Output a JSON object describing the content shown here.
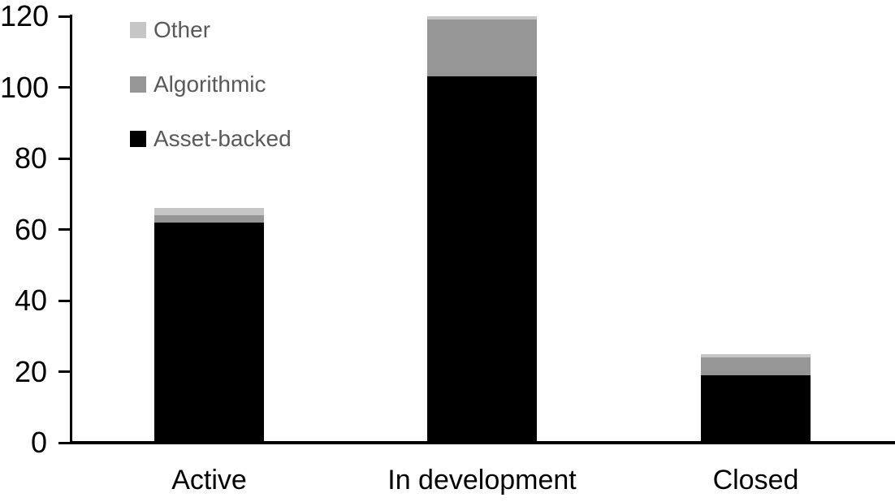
{
  "chart_data": {
    "type": "bar",
    "stacked": true,
    "title": "",
    "xlabel": "",
    "ylabel": "",
    "categories": [
      "Active",
      "In development",
      "Closed"
    ],
    "series": [
      {
        "name": "Asset-backed",
        "color": "#000000",
        "values": [
          62,
          103,
          19
        ]
      },
      {
        "name": "Algorithmic",
        "color": "#969696",
        "values": [
          2,
          16,
          5
        ]
      },
      {
        "name": "Other",
        "color": "#c6c6c6",
        "values": [
          2,
          1,
          1
        ]
      }
    ],
    "stack_totals": [
      66,
      120,
      25
    ],
    "ylim": [
      0,
      120
    ],
    "yticks": [
      0,
      20,
      40,
      60,
      80,
      100,
      120
    ],
    "grid": false,
    "legend": {
      "position": "top-left",
      "order": [
        "Other",
        "Algorithmic",
        "Asset-backed"
      ],
      "text_color": "#595959"
    },
    "axis_color": "#000000",
    "background_color": "#ffffff"
  }
}
